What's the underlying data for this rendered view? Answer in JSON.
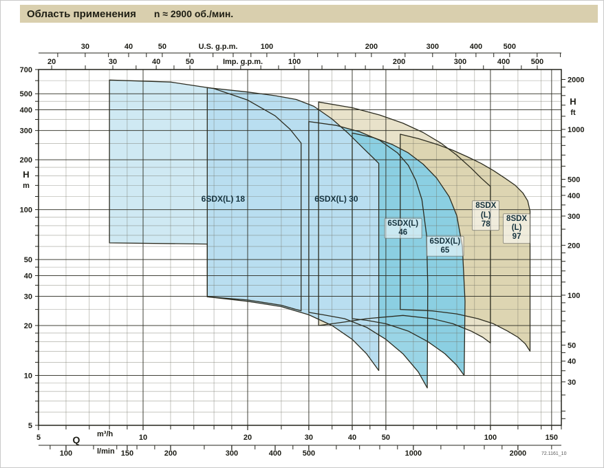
{
  "title": {
    "main": "Область применения",
    "sub": "n ≈ 2900 об./мин."
  },
  "footer": {
    "code": "72.1161_10"
  },
  "colors": {
    "title_bg": "#d9cfae",
    "axis": "#23231b",
    "grid_minor": "#6e6e60",
    "grid_major": "#2c2c22",
    "label_text": "#15323d"
  },
  "chart_data": {
    "type": "area",
    "title": "Область применения",
    "speed_note": "n ≈ 2900 об./мин.",
    "x_scale": "log",
    "y_scale": "log",
    "x_range_m3h": [
      5,
      160
    ],
    "y_range_m": [
      5,
      700
    ],
    "stroke_color": "#2b2b1f",
    "axes": {
      "left": {
        "label": "H",
        "unit": "m",
        "ticks": [
          700,
          500,
          400,
          300,
          200,
          100,
          50,
          40,
          30,
          20,
          10,
          5
        ]
      },
      "right": {
        "label": "H",
        "unit": "ft",
        "to_m": 0.3048,
        "ticks": [
          2000,
          1000,
          500,
          400,
          300,
          200,
          100,
          50,
          40,
          30
        ]
      },
      "top_us": {
        "label": "U.S. g.p.m.",
        "per_m3h": 4.4029,
        "ticks": [
          30,
          40,
          50,
          100,
          200,
          300,
          400,
          500
        ]
      },
      "top_imp": {
        "label": "Imp. g.p.m.",
        "per_m3h": 3.6662,
        "ticks": [
          20,
          30,
          40,
          50,
          100,
          200,
          300,
          400,
          500
        ]
      },
      "bottom_q": {
        "label": "Q",
        "unit": "m³/h",
        "ticks": [
          5,
          10,
          20,
          30,
          40,
          50,
          100,
          150
        ]
      },
      "bottom_lmin": {
        "unit": "l/min",
        "per_m3h": 16.667,
        "ticks": [
          100,
          150,
          200,
          300,
          400,
          500,
          1000,
          2000
        ]
      }
    },
    "regions": [
      {
        "id": "8sdx78",
        "label_lines": [
          "8SDX",
          "(L)",
          "78"
        ],
        "boxed": true,
        "color": "#e8e2ca",
        "label_pos": [
          97,
          92
        ],
        "points": [
          [
            32,
            20
          ],
          [
            32,
            446
          ],
          [
            40,
            412
          ],
          [
            48,
            372
          ],
          [
            56,
            332
          ],
          [
            64,
            292
          ],
          [
            72,
            252
          ],
          [
            80,
            213
          ],
          [
            88,
            178
          ],
          [
            94,
            155
          ],
          [
            100,
            138
          ],
          [
            100,
            15.7
          ],
          [
            95,
            17
          ],
          [
            88,
            18.5
          ],
          [
            78,
            20.5
          ],
          [
            68,
            22
          ],
          [
            56,
            23
          ],
          [
            44,
            22
          ],
          [
            38,
            21
          ]
        ]
      },
      {
        "id": "8sdx97",
        "label_lines": [
          "8SDX",
          "(L)",
          "97"
        ],
        "boxed": true,
        "color": "#ddd5b2",
        "label_pos": [
          119,
          77
        ],
        "points": [
          [
            55,
            25
          ],
          [
            55,
            285
          ],
          [
            62,
            268
          ],
          [
            70,
            248
          ],
          [
            78,
            228
          ],
          [
            86,
            208
          ],
          [
            94,
            190
          ],
          [
            102,
            172
          ],
          [
            110,
            155
          ],
          [
            118,
            140
          ],
          [
            124,
            126
          ],
          [
            128,
            113
          ],
          [
            130,
            98
          ],
          [
            130,
            14
          ],
          [
            126,
            15.5
          ],
          [
            120,
            17
          ],
          [
            112,
            18.5
          ],
          [
            102,
            20.5
          ],
          [
            92,
            22
          ],
          [
            80,
            23.5
          ],
          [
            68,
            24.5
          ]
        ]
      },
      {
        "id": "6sdx46",
        "label_lines": [
          "6SDX(L)",
          "46"
        ],
        "boxed": true,
        "color": "#9ad5e6",
        "label_pos": [
          56,
          77
        ],
        "points": [
          [
            30,
            24
          ],
          [
            30,
            340
          ],
          [
            36,
            322
          ],
          [
            42,
            295
          ],
          [
            48,
            262
          ],
          [
            54,
            220
          ],
          [
            58,
            185
          ],
          [
            61,
            150
          ],
          [
            63.5,
            115
          ],
          [
            65.5,
            70
          ],
          [
            66,
            35
          ],
          [
            65.8,
            8.4
          ],
          [
            62,
            10.5
          ],
          [
            56,
            13.5
          ],
          [
            50,
            16.5
          ],
          [
            44,
            19.5
          ],
          [
            38,
            22
          ],
          [
            33,
            23.2
          ]
        ]
      },
      {
        "id": "6sdx65",
        "label_lines": [
          "6SDX(L)",
          "65"
        ],
        "boxed": true,
        "color": "#8bcfe2",
        "label_pos": [
          74,
          60
        ],
        "points": [
          [
            40,
            22
          ],
          [
            40,
            290
          ],
          [
            46,
            272
          ],
          [
            52,
            248
          ],
          [
            58,
            220
          ],
          [
            64,
            188
          ],
          [
            70,
            155
          ],
          [
            76,
            120
          ],
          [
            80,
            92
          ],
          [
            83,
            60
          ],
          [
            84.5,
            28
          ],
          [
            84,
            10
          ],
          [
            80,
            11.5
          ],
          [
            74,
            13.5
          ],
          [
            66,
            16
          ],
          [
            58,
            18.5
          ],
          [
            50,
            20.5
          ],
          [
            44,
            21.5
          ]
        ]
      },
      {
        "id": "6sdx18",
        "label_lines": [
          "6SDX(L) 18"
        ],
        "boxed": false,
        "color": "#cfe9f3",
        "label_pos": [
          17,
          115
        ],
        "points": [
          [
            8,
            63
          ],
          [
            8,
            605
          ],
          [
            12,
            588
          ],
          [
            16,
            537
          ],
          [
            20,
            458
          ],
          [
            24,
            368
          ],
          [
            26.5,
            305
          ],
          [
            28.5,
            252
          ],
          [
            28.5,
            24.5
          ],
          [
            25,
            26.5
          ],
          [
            20,
            28.5
          ],
          [
            15.3,
            29.8
          ],
          [
            15.3,
            62
          ]
        ]
      },
      {
        "id": "6sdx30",
        "label_lines": [
          "6SDX(L) 30"
        ],
        "boxed": false,
        "color": "#b9def0",
        "label_pos": [
          36,
          115
        ],
        "points": [
          [
            15.3,
            29.8
          ],
          [
            15.3,
            544
          ],
          [
            20,
            512
          ],
          [
            24,
            487
          ],
          [
            27.6,
            462
          ],
          [
            31,
            420
          ],
          [
            35,
            352
          ],
          [
            39,
            288
          ],
          [
            43,
            235
          ],
          [
            46,
            205
          ],
          [
            47.7,
            190
          ],
          [
            47.7,
            10.7
          ],
          [
            44,
            13.5
          ],
          [
            40,
            16.5
          ],
          [
            35,
            20
          ],
          [
            30,
            23.2
          ],
          [
            25,
            26
          ],
          [
            20,
            28
          ]
        ]
      }
    ]
  }
}
